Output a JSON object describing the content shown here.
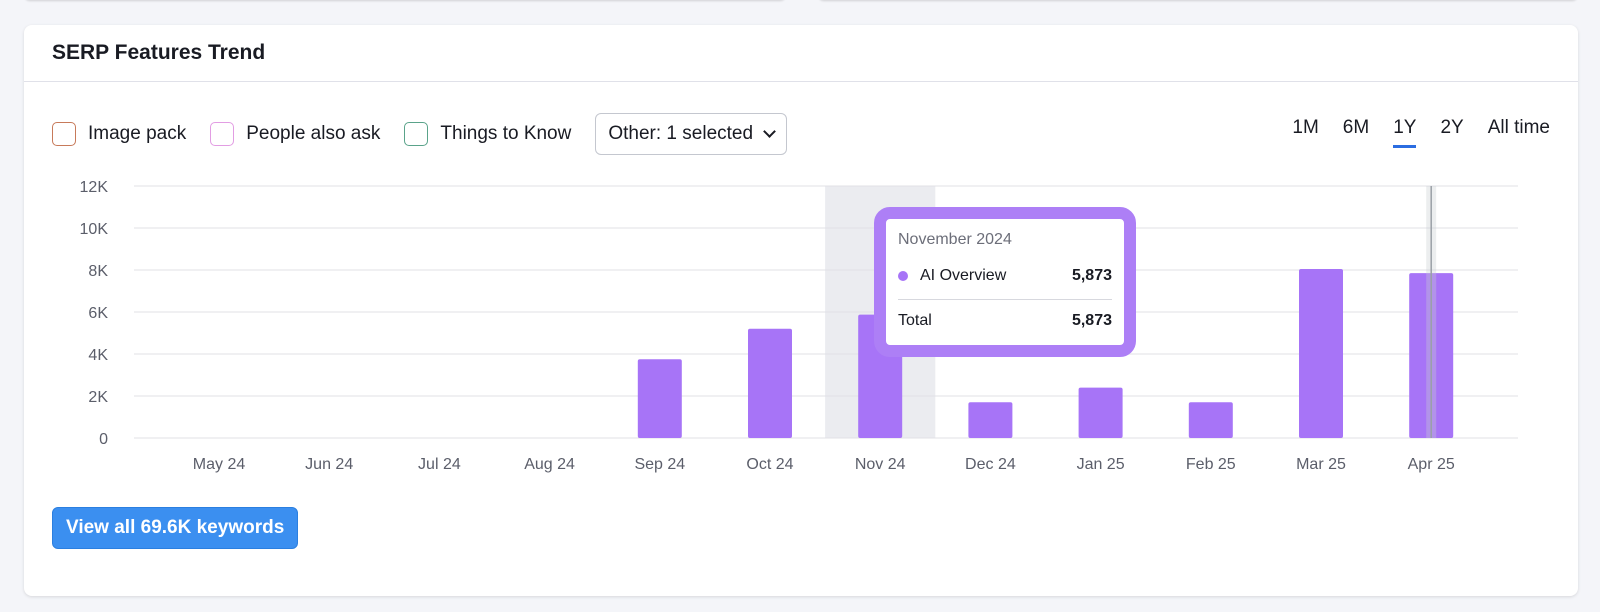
{
  "card": {
    "title": "SERP Features Trend"
  },
  "filters": {
    "legend": [
      {
        "label": "Image pack",
        "color": "#c77a5a"
      },
      {
        "label": "People also ask",
        "color": "#e29de3"
      },
      {
        "label": "Things to Know",
        "color": "#5aa38a"
      }
    ],
    "dropdown_label": "Other: 1 selected"
  },
  "periods": [
    {
      "label": "1M",
      "active": false
    },
    {
      "label": "6M",
      "active": false
    },
    {
      "label": "1Y",
      "active": true
    },
    {
      "label": "2Y",
      "active": false
    },
    {
      "label": "All time",
      "active": false
    }
  ],
  "chart_data": {
    "type": "bar",
    "categories": [
      "May 24",
      "Jun 24",
      "Jul 24",
      "Aug 24",
      "Sep 24",
      "Oct 24",
      "Nov 24",
      "Dec 24",
      "Jan 25",
      "Feb 25",
      "Mar 25",
      "Apr 25"
    ],
    "series": [
      {
        "name": "AI Overview",
        "color": "#a774f7",
        "values": [
          0,
          0,
          0,
          0,
          3750,
          5200,
          5873,
          1700,
          2400,
          1700,
          8050,
          7850
        ]
      }
    ],
    "ylim": [
      0,
      12000
    ],
    "yticks": [
      "0",
      "2K",
      "4K",
      "6K",
      "8K",
      "10K",
      "12K"
    ],
    "ytick_values": [
      0,
      2000,
      4000,
      6000,
      8000,
      10000,
      12000
    ],
    "highlighted_category": "Nov 24",
    "cursor_category": "Apr 25",
    "grid": true
  },
  "tooltip": {
    "date": "November 2024",
    "series_name": "AI Overview",
    "series_value": "5,873",
    "total_label": "Total",
    "total_value": "5,873",
    "accent": "#ad7ff6"
  },
  "cta_label": "View all 69.6K keywords"
}
